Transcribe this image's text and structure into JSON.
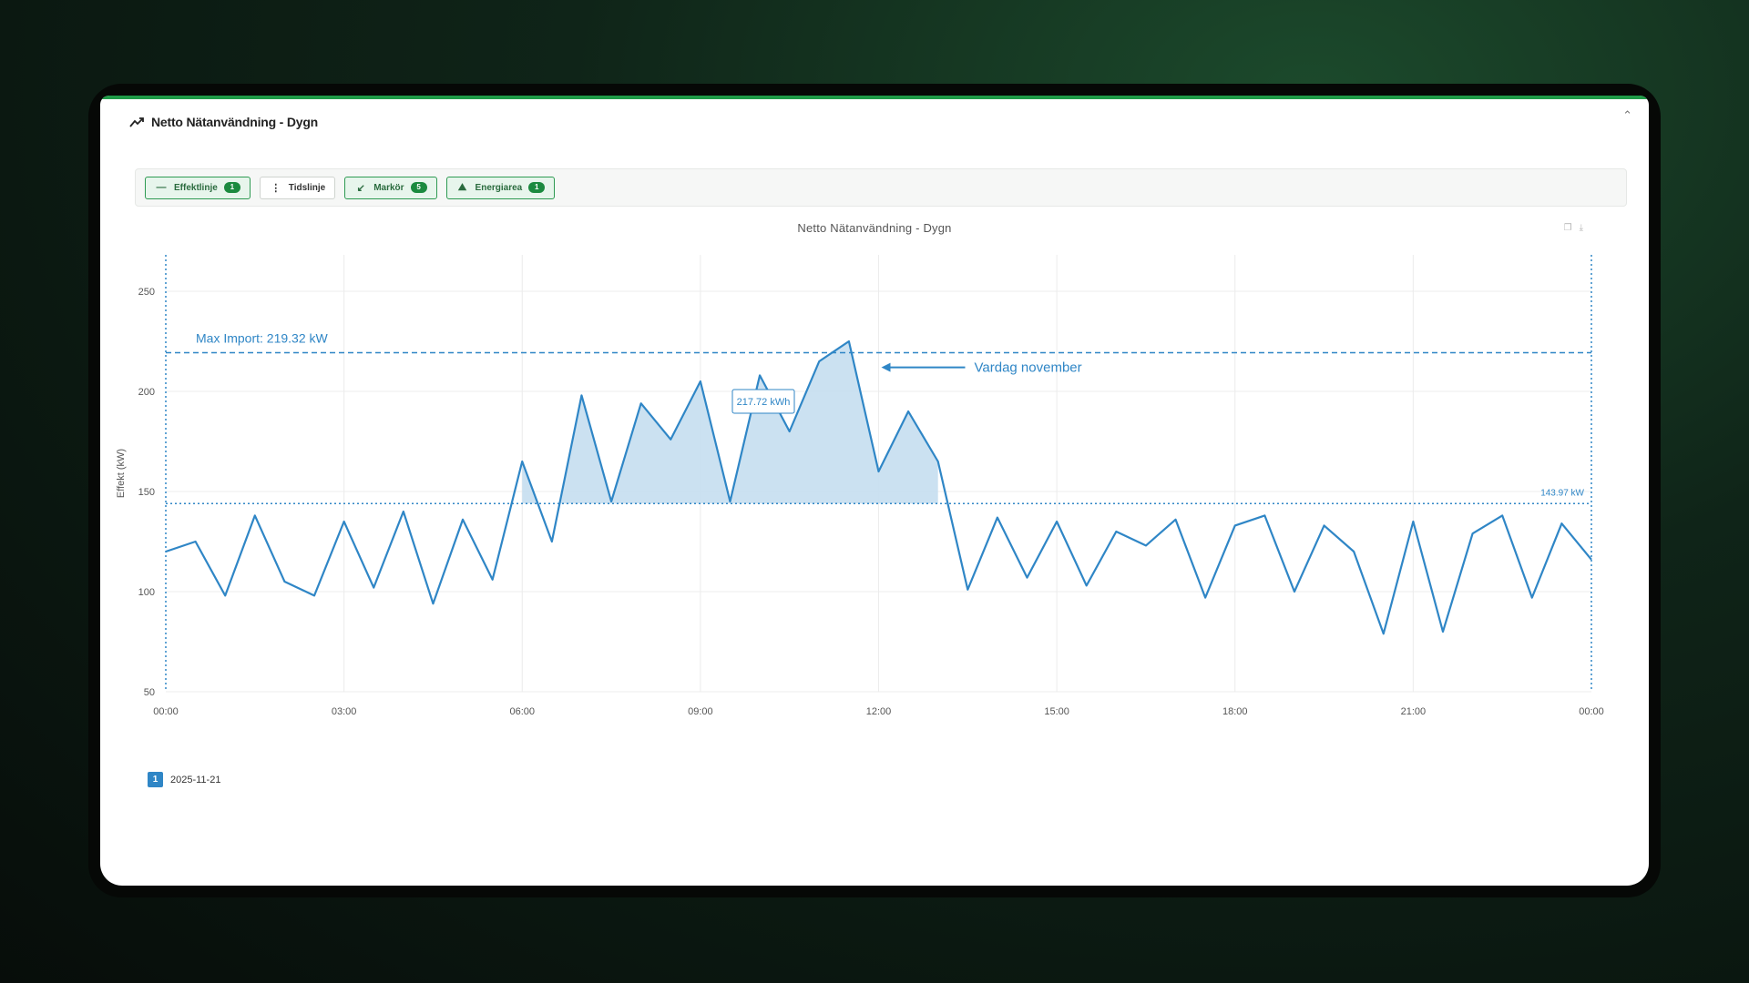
{
  "panel": {
    "title": "Netto Nätanvändning - Dygn",
    "title_icon": "trend-line-icon",
    "collapse_icon": "chevron-up-icon"
  },
  "toolbar": {
    "buttons": [
      {
        "label": "Effektlinje",
        "badge": "1",
        "icon": "minus-icon",
        "active": true
      },
      {
        "label": "Tidslinje",
        "badge": "",
        "icon": "vertical-dots-icon",
        "active": false
      },
      {
        "label": "Markör",
        "badge": "5",
        "icon": "arrow-icon",
        "active": true
      },
      {
        "label": "Energiarea",
        "badge": "1",
        "icon": "area-icon",
        "active": true
      }
    ]
  },
  "colors": {
    "accent": "#1f9a47",
    "series": "#2f86c6",
    "area": "#c8dff0"
  },
  "chart_data": {
    "type": "line",
    "title": "Netto Nätanvändning - Dygn",
    "ylabel": "Effekt (kW)",
    "xlabel": "",
    "ylim": [
      50,
      260
    ],
    "yticks": [
      50,
      100,
      150,
      200,
      250
    ],
    "xticks": [
      "00:00",
      "03:00",
      "06:00",
      "09:00",
      "12:00",
      "15:00",
      "18:00",
      "21:00",
      "00:00"
    ],
    "series": [
      {
        "name": "2025-11-21",
        "x": [
          "00:00",
          "00:30",
          "01:00",
          "01:30",
          "02:00",
          "02:30",
          "03:00",
          "03:30",
          "04:00",
          "04:30",
          "05:00",
          "05:30",
          "06:00",
          "06:30",
          "07:00",
          "07:30",
          "08:00",
          "08:30",
          "09:00",
          "09:30",
          "10:00",
          "10:30",
          "11:00",
          "11:30",
          "12:00",
          "12:30",
          "13:00",
          "13:30",
          "14:00",
          "14:30",
          "15:00",
          "15:30",
          "16:00",
          "16:30",
          "17:00",
          "17:30",
          "18:00",
          "18:30",
          "19:00",
          "19:30",
          "20:00",
          "20:30",
          "21:00",
          "21:30",
          "22:00",
          "22:30",
          "23:00",
          "23:30",
          "00:00"
        ],
        "values": [
          120,
          125,
          98,
          138,
          105,
          98,
          135,
          102,
          140,
          94,
          136,
          106,
          165,
          125,
          198,
          145,
          194,
          176,
          205,
          145,
          208,
          180,
          215,
          225,
          160,
          190,
          165,
          101,
          137,
          107,
          135,
          103,
          130,
          123,
          136,
          97,
          133,
          138,
          100,
          133,
          120,
          79,
          135,
          80,
          129,
          138,
          97,
          134,
          116
        ]
      }
    ],
    "reference_lines": [
      {
        "label": "Max Import: 219.32 kW",
        "value": 219.32,
        "style": "dashed"
      },
      {
        "label": "143.97 kW",
        "value": 143.97,
        "style": "dotted"
      }
    ],
    "time_markers": [
      "00:00",
      "00:00"
    ],
    "energy_area": {
      "from": "06:00",
      "to": "13:00",
      "baseline": 143.97,
      "label": "217.72 kWh"
    },
    "annotation": {
      "text": "Vardag november",
      "points_to": "12:00"
    },
    "legend": {
      "position": "bottom-left",
      "items": [
        {
          "badge": "1",
          "label": "2025-11-21"
        }
      ]
    }
  }
}
